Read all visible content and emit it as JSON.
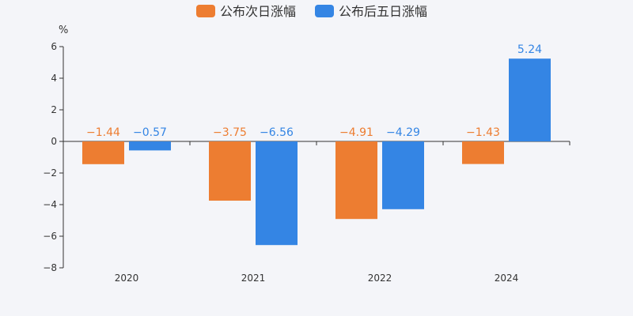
{
  "chart_data": {
    "type": "bar",
    "unit": "%",
    "categories": [
      "2020",
      "2021",
      "2022",
      "2024"
    ],
    "series": [
      {
        "name": "公布次日涨幅",
        "color": "#ed7d31",
        "values": [
          -1.44,
          -3.75,
          -4.91,
          -1.43
        ],
        "labels": [
          "−1.44",
          "−3.75",
          "−4.91",
          "−1.43"
        ]
      },
      {
        "name": "公布后五日涨幅",
        "color": "#3485e4",
        "values": [
          -0.57,
          -6.56,
          -4.29,
          5.24
        ],
        "labels": [
          "−0.57",
          "−6.56",
          "−4.29",
          "5.24"
        ]
      }
    ],
    "ylim": [
      -8,
      6
    ],
    "yticks": [
      6,
      4,
      2,
      0,
      -2,
      -4,
      -6,
      -8
    ],
    "ytick_labels": [
      "6",
      "4",
      "2",
      "0",
      "−2",
      "−4",
      "−6",
      "−8"
    ],
    "legend_position": "top-center",
    "grid": false
  }
}
